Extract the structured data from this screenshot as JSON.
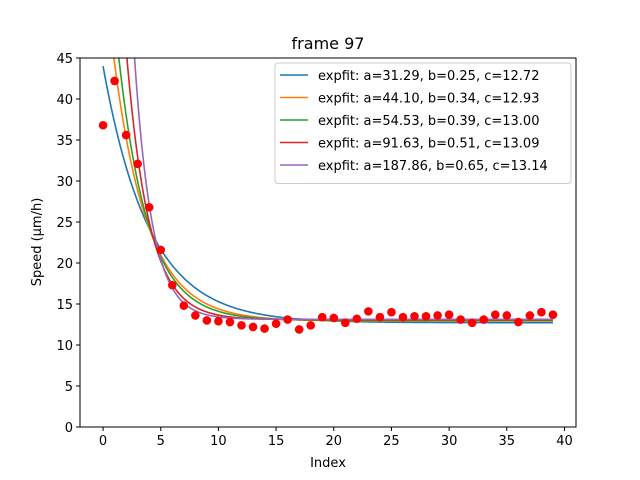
{
  "chart_data": {
    "type": "scatter",
    "title": "frame 97",
    "xlabel": "Index",
    "ylabel": "Speed (μm/h)",
    "xlim": [
      -2,
      41
    ],
    "ylim": [
      0,
      45
    ],
    "xticks": [
      0,
      5,
      10,
      15,
      20,
      25,
      30,
      35,
      40
    ],
    "yticks": [
      0,
      5,
      10,
      15,
      20,
      25,
      30,
      35,
      40,
      45
    ],
    "legend_position": "top-right",
    "points": {
      "name": "data",
      "color": "#ff0000",
      "x": [
        0,
        1,
        2,
        3,
        4,
        5,
        6,
        7,
        8,
        9,
        10,
        11,
        12,
        13,
        14,
        15,
        16,
        17,
        18,
        19,
        20,
        21,
        22,
        23,
        24,
        25,
        26,
        27,
        28,
        29,
        30,
        31,
        32,
        33,
        34,
        35,
        36,
        37,
        38,
        39
      ],
      "y": [
        36.8,
        42.2,
        35.6,
        32.1,
        26.8,
        21.6,
        17.3,
        14.8,
        13.6,
        13.0,
        12.9,
        12.8,
        12.4,
        12.2,
        12.0,
        12.6,
        13.1,
        11.9,
        12.4,
        13.4,
        13.3,
        12.7,
        13.2,
        14.1,
        13.4,
        14.0,
        13.4,
        13.5,
        13.5,
        13.6,
        13.7,
        13.1,
        12.7,
        13.1,
        13.7,
        13.6,
        12.8,
        13.6,
        14.0,
        13.7
      ]
    },
    "series": [
      {
        "name": "expfit: a=31.29, b=0.25, c=12.72",
        "color": "#1f77b4",
        "a": 31.29,
        "b": 0.25,
        "c": 12.72
      },
      {
        "name": "expfit: a=44.10, b=0.34, c=12.93",
        "color": "#ff7f0e",
        "a": 44.1,
        "b": 0.34,
        "c": 12.93
      },
      {
        "name": "expfit: a=54.53, b=0.39, c=13.00",
        "color": "#2ca02c",
        "a": 54.53,
        "b": 0.39,
        "c": 13.0
      },
      {
        "name": "expfit: a=91.63, b=0.51, c=13.09",
        "color": "#d62728",
        "a": 91.63,
        "b": 0.51,
        "c": 13.09
      },
      {
        "name": "expfit: a=187.86, b=0.65, c=13.14",
        "color": "#9467bd",
        "a": 187.86,
        "b": 0.65,
        "c": 13.14
      }
    ]
  }
}
